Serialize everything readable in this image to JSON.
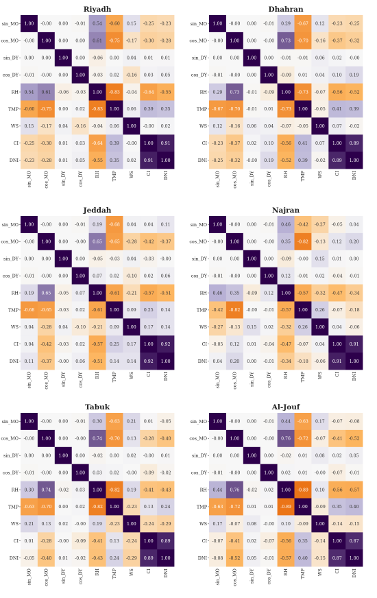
{
  "chart_data": [
    {
      "type": "heatmap",
      "title": "Riyadh",
      "variables": [
        "sin_MO",
        "cos_MO",
        "sin_DY",
        "cos_DY",
        "RH",
        "TMP",
        "WS",
        "CI",
        "DNI"
      ],
      "matrix": [
        [
          "1.00",
          "-0.00",
          "0.00",
          "-0.01",
          "0.54",
          "-0.60",
          "0.15",
          "-0.25",
          "-0.23"
        ],
        [
          "-0.00",
          "1.00",
          "0.00",
          "0.00",
          "0.61",
          "-0.75",
          "-0.17",
          "-0.30",
          "-0.28"
        ],
        [
          "0.00",
          "0.00",
          "1.00",
          "0.00",
          "-0.06",
          "0.00",
          "0.04",
          "0.01",
          "0.01"
        ],
        [
          "-0.01",
          "-0.00",
          "0.00",
          "1.00",
          "-0.03",
          "0.02",
          "-0.16",
          "0.03",
          "0.05"
        ],
        [
          "0.54",
          "0.61",
          "-0.06",
          "-0.03",
          "1.00",
          "-0.83",
          "-0.04",
          "-0.64",
          "-0.55"
        ],
        [
          "-0.60",
          "-0.75",
          "0.00",
          "0.02",
          "-0.83",
          "1.00",
          "0.06",
          "0.39",
          "0.35"
        ],
        [
          "0.15",
          "-0.17",
          "0.04",
          "-0.16",
          "-0.04",
          "0.06",
          "1.00",
          "-0.00",
          "0.02"
        ],
        [
          "-0.25",
          "-0.30",
          "0.01",
          "0.03",
          "-0.64",
          "0.39",
          "-0.00",
          "1.00",
          "0.91"
        ],
        [
          "-0.23",
          "-0.28",
          "0.01",
          "0.05",
          "-0.55",
          "0.35",
          "0.02",
          "0.91",
          "1.00"
        ]
      ]
    },
    {
      "type": "heatmap",
      "title": "Dhahran",
      "variables": [
        "sin_MO",
        "cos_MO",
        "sin_DY",
        "cos_DY",
        "RH",
        "TMP",
        "WS",
        "CI",
        "DNI"
      ],
      "matrix": [
        [
          "1.00",
          "-0.00",
          "0.00",
          "-0.01",
          "0.29",
          "-0.67",
          "0.12",
          "-0.23",
          "-0.25"
        ],
        [
          "-0.00",
          "1.00",
          "0.00",
          "-0.00",
          "0.73",
          "-0.70",
          "-0.16",
          "-0.37",
          "-0.32"
        ],
        [
          "0.00",
          "0.00",
          "1.00",
          "0.00",
          "-0.01",
          "-0.01",
          "0.06",
          "0.02",
          "-0.00"
        ],
        [
          "-0.01",
          "-0.00",
          "0.00",
          "1.00",
          "-0.09",
          "0.01",
          "0.04",
          "0.10",
          "0.19"
        ],
        [
          "0.29",
          "0.73",
          "-0.01",
          "-0.09",
          "1.00",
          "-0.73",
          "-0.07",
          "-0.56",
          "-0.52"
        ],
        [
          "-0.67",
          "-0.70",
          "-0.01",
          "0.01",
          "-0.73",
          "1.00",
          "-0.05",
          "0.41",
          "0.39"
        ],
        [
          "0.12",
          "-0.16",
          "0.06",
          "0.04",
          "-0.07",
          "-0.05",
          "1.00",
          "0.07",
          "-0.02"
        ],
        [
          "-0.23",
          "-0.37",
          "0.02",
          "0.10",
          "-0.56",
          "0.41",
          "0.07",
          "1.00",
          "0.89"
        ],
        [
          "-0.25",
          "-0.32",
          "-0.00",
          "0.19",
          "-0.52",
          "0.39",
          "-0.02",
          "0.89",
          "1.00"
        ]
      ]
    },
    {
      "type": "heatmap",
      "title": "Jeddah",
      "variables": [
        "sin_MO",
        "cos_MO",
        "sin_DY",
        "cos_DY",
        "RH",
        "TMP",
        "WS",
        "CI",
        "DNI"
      ],
      "matrix": [
        [
          "1.00",
          "-0.00",
          "0.00",
          "-0.01",
          "0.19",
          "-0.68",
          "0.04",
          "0.04",
          "0.11"
        ],
        [
          "-0.00",
          "1.00",
          "0.00",
          "-0.00",
          "0.65",
          "-0.65",
          "-0.28",
          "-0.42",
          "-0.37"
        ],
        [
          "0.00",
          "0.00",
          "1.00",
          "0.00",
          "-0.05",
          "-0.03",
          "0.04",
          "-0.03",
          "-0.00"
        ],
        [
          "-0.01",
          "-0.00",
          "0.00",
          "1.00",
          "0.07",
          "0.02",
          "-0.10",
          "0.02",
          "0.06"
        ],
        [
          "0.19",
          "0.65",
          "-0.05",
          "0.07",
          "1.00",
          "-0.61",
          "-0.21",
          "-0.57",
          "-0.51"
        ],
        [
          "-0.68",
          "-0.65",
          "-0.03",
          "0.02",
          "-0.61",
          "1.00",
          "0.09",
          "0.25",
          "0.14"
        ],
        [
          "0.04",
          "-0.28",
          "0.04",
          "-0.10",
          "-0.21",
          "0.09",
          "1.00",
          "0.17",
          "0.14"
        ],
        [
          "0.04",
          "-0.42",
          "-0.03",
          "0.02",
          "-0.57",
          "0.25",
          "0.17",
          "1.00",
          "0.92"
        ],
        [
          "0.11",
          "-0.37",
          "-0.00",
          "0.06",
          "-0.51",
          "0.14",
          "0.14",
          "0.92",
          "1.00"
        ]
      ]
    },
    {
      "type": "heatmap",
      "title": "Najran",
      "variables": [
        "sin_MO",
        "cos_MO",
        "sin_DY",
        "cos_DY",
        "RH",
        "TMP",
        "WS",
        "CI",
        "DNI"
      ],
      "matrix": [
        [
          "1.00",
          "-0.00",
          "0.00",
          "-0.01",
          "0.46",
          "-0.42",
          "-0.27",
          "-0.05",
          "0.04"
        ],
        [
          "-0.00",
          "1.00",
          "0.00",
          "-0.00",
          "0.35",
          "-0.82",
          "-0.13",
          "0.12",
          "0.20"
        ],
        [
          "0.00",
          "0.00",
          "1.00",
          "0.00",
          "-0.09",
          "-0.00",
          "0.15",
          "0.01",
          "0.00"
        ],
        [
          "-0.01",
          "-0.00",
          "0.00",
          "1.00",
          "0.12",
          "-0.01",
          "0.02",
          "-0.04",
          "-0.01"
        ],
        [
          "0.46",
          "0.35",
          "-0.09",
          "0.12",
          "1.00",
          "-0.57",
          "-0.32",
          "-0.47",
          "-0.34"
        ],
        [
          "-0.42",
          "-0.82",
          "-0.00",
          "-0.01",
          "-0.57",
          "1.00",
          "0.26",
          "-0.07",
          "-0.18"
        ],
        [
          "-0.27",
          "-0.13",
          "0.15",
          "0.02",
          "-0.32",
          "0.26",
          "1.00",
          "0.04",
          "-0.06"
        ],
        [
          "-0.05",
          "0.12",
          "0.01",
          "-0.04",
          "-0.47",
          "-0.07",
          "0.04",
          "1.00",
          "0.91"
        ],
        [
          "0.04",
          "0.20",
          "0.00",
          "-0.01",
          "-0.34",
          "-0.18",
          "-0.06",
          "0.91",
          "1.00"
        ]
      ]
    },
    {
      "type": "heatmap",
      "title": "Tabuk",
      "variables": [
        "sin_MO",
        "cos_MO",
        "sin_DY",
        "cos_DY",
        "RH",
        "TMP",
        "WS",
        "CI",
        "DNI"
      ],
      "matrix": [
        [
          "1.00",
          "-0.00",
          "0.00",
          "-0.01",
          "0.30",
          "-0.63",
          "0.21",
          "0.01",
          "-0.05"
        ],
        [
          "-0.00",
          "1.00",
          "0.00",
          "-0.00",
          "0.74",
          "-0.70",
          "0.13",
          "-0.28",
          "-0.40"
        ],
        [
          "0.00",
          "0.00",
          "1.00",
          "0.00",
          "-0.02",
          "0.00",
          "0.02",
          "-0.00",
          "0.01"
        ],
        [
          "-0.01",
          "-0.00",
          "0.00",
          "1.00",
          "0.03",
          "0.02",
          "-0.00",
          "-0.09",
          "-0.02"
        ],
        [
          "0.30",
          "0.74",
          "-0.02",
          "0.03",
          "1.00",
          "-0.82",
          "0.19",
          "-0.41",
          "-0.43"
        ],
        [
          "-0.63",
          "-0.70",
          "0.00",
          "0.02",
          "-0.82",
          "1.00",
          "-0.23",
          "0.13",
          "0.24"
        ],
        [
          "0.21",
          "0.13",
          "0.02",
          "-0.00",
          "0.19",
          "-0.23",
          "1.00",
          "-0.24",
          "-0.29"
        ],
        [
          "0.01",
          "-0.28",
          "-0.00",
          "-0.09",
          "-0.41",
          "0.13",
          "-0.24",
          "1.00",
          "0.89"
        ],
        [
          "-0.05",
          "-0.40",
          "0.01",
          "-0.02",
          "-0.43",
          "0.24",
          "-0.29",
          "0.89",
          "1.00"
        ]
      ]
    },
    {
      "type": "heatmap",
      "title": "Al-Jouf",
      "variables": [
        "sin_MO",
        "cos_MO",
        "sin_DY",
        "cos_DY",
        "RH",
        "TMP",
        "WS",
        "CI",
        "DNI"
      ],
      "matrix": [
        [
          "1.00",
          "-0.00",
          "0.00",
          "-0.01",
          "0.44",
          "-0.63",
          "0.17",
          "-0.07",
          "-0.08"
        ],
        [
          "-0.00",
          "1.00",
          "0.00",
          "-0.00",
          "0.76",
          "-0.72",
          "-0.07",
          "-0.41",
          "-0.52"
        ],
        [
          "0.00",
          "0.00",
          "1.00",
          "0.00",
          "-0.02",
          "0.01",
          "0.08",
          "0.02",
          "0.05"
        ],
        [
          "-0.01",
          "-0.00",
          "0.00",
          "1.00",
          "0.02",
          "0.01",
          "-0.00",
          "-0.07",
          "-0.01"
        ],
        [
          "0.44",
          "0.76",
          "-0.02",
          "0.02",
          "1.00",
          "-0.89",
          "0.10",
          "-0.56",
          "-0.57"
        ],
        [
          "-0.63",
          "-0.72",
          "0.01",
          "0.01",
          "-0.89",
          "1.00",
          "-0.09",
          "0.35",
          "0.40"
        ],
        [
          "0.17",
          "-0.07",
          "0.08",
          "-0.00",
          "0.10",
          "-0.09",
          "1.00",
          "-0.14",
          "-0.15"
        ],
        [
          "-0.07",
          "-0.41",
          "0.02",
          "-0.07",
          "-0.56",
          "0.35",
          "-0.14",
          "1.00",
          "0.87"
        ],
        [
          "-0.08",
          "-0.52",
          "0.05",
          "-0.01",
          "-0.57",
          "0.40",
          "-0.15",
          "0.87",
          "1.00"
        ]
      ]
    }
  ],
  "colors": {
    "negative_strong": "#e66101",
    "negative_mid": "#fdb863",
    "neutral": "#f7f7f7",
    "positive_mid": "#b2abd2",
    "positive_strong": "#2d004b"
  }
}
